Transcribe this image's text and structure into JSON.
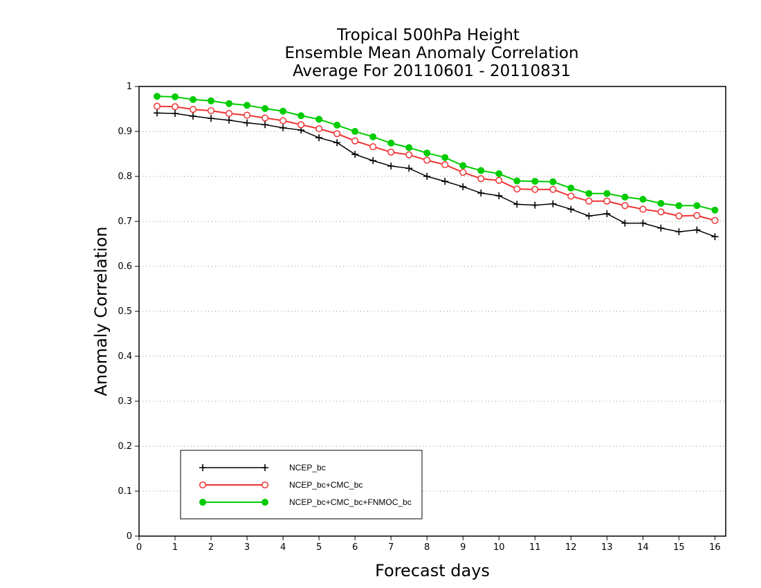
{
  "chart_data": {
    "type": "line",
    "title_lines": [
      "Tropical 500hPa Height",
      "Ensemble Mean Anomaly Correlation",
      "Average For 20110601 - 20110831"
    ],
    "xlabel": "Forecast days",
    "ylabel": "Anomaly Correlation",
    "xlim": [
      0,
      16.3
    ],
    "ylim": [
      0,
      1
    ],
    "x_ticks": [
      "0",
      "1",
      "2",
      "3",
      "4",
      "5",
      "6",
      "7",
      "8",
      "9",
      "10",
      "11",
      "12",
      "13",
      "14",
      "15",
      "16"
    ],
    "y_ticks": [
      "0",
      "0.1",
      "0.2",
      "0.3",
      "0.4",
      "0.5",
      "0.6",
      "0.7",
      "0.8",
      "0.9",
      "1"
    ],
    "grid": "horizontal dotted",
    "legend_position": "bottom-left",
    "x": [
      0.5,
      1,
      1.5,
      2,
      2.5,
      3,
      3.5,
      4,
      4.5,
      5,
      5.5,
      6,
      6.5,
      7,
      7.5,
      8,
      8.5,
      9,
      9.5,
      10,
      10.5,
      11,
      11.5,
      12,
      12.5,
      13,
      13.5,
      14,
      14.5,
      15,
      15.5,
      16
    ],
    "series": [
      {
        "name": "NCEP_bc",
        "color": "#000000",
        "marker": "plus",
        "values": [
          0.941,
          0.94,
          0.934,
          0.929,
          0.925,
          0.919,
          0.915,
          0.908,
          0.903,
          0.886,
          0.875,
          0.849,
          0.835,
          0.823,
          0.818,
          0.8,
          0.789,
          0.777,
          0.763,
          0.757,
          0.738,
          0.736,
          0.739,
          0.727,
          0.712,
          0.717,
          0.696,
          0.696,
          0.685,
          0.677,
          0.681,
          0.666
        ]
      },
      {
        "name": "NCEP_bc+CMC_bc",
        "color": "#ee3333",
        "marker": "open-circle",
        "values": [
          0.956,
          0.955,
          0.949,
          0.946,
          0.94,
          0.936,
          0.93,
          0.924,
          0.915,
          0.906,
          0.895,
          0.879,
          0.866,
          0.854,
          0.848,
          0.836,
          0.826,
          0.809,
          0.795,
          0.791,
          0.772,
          0.771,
          0.771,
          0.756,
          0.745,
          0.745,
          0.735,
          0.727,
          0.721,
          0.712,
          0.713,
          0.702
        ]
      },
      {
        "name": "NCEP_bc+CMC_bc+FNMOC_bc",
        "color": "#00cc00",
        "marker": "filled-circle",
        "values": [
          0.978,
          0.977,
          0.971,
          0.968,
          0.962,
          0.958,
          0.951,
          0.945,
          0.935,
          0.927,
          0.914,
          0.9,
          0.888,
          0.874,
          0.864,
          0.852,
          0.842,
          0.824,
          0.813,
          0.806,
          0.79,
          0.789,
          0.788,
          0.774,
          0.762,
          0.762,
          0.754,
          0.749,
          0.74,
          0.735,
          0.735,
          0.725
        ]
      }
    ]
  }
}
